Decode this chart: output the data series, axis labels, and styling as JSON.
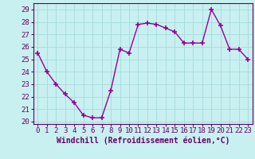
{
  "x": [
    0,
    1,
    2,
    3,
    4,
    5,
    6,
    7,
    8,
    9,
    10,
    11,
    12,
    13,
    14,
    15,
    16,
    17,
    18,
    19,
    20,
    21,
    22,
    23
  ],
  "y": [
    25.5,
    24.0,
    23.0,
    22.2,
    21.5,
    20.5,
    20.3,
    20.3,
    22.5,
    25.8,
    25.5,
    27.8,
    27.9,
    27.8,
    27.5,
    27.2,
    26.3,
    26.3,
    26.3,
    29.0,
    27.7,
    25.8,
    25.8,
    25.0
  ],
  "line_color": "#990099",
  "marker": "+",
  "marker_size": 4,
  "marker_lw": 1.2,
  "bg_color": "#c8f0f0",
  "grid_color": "#aadddd",
  "xlabel": "Windchill (Refroidissement éolien,°C)",
  "xlabel_fontsize": 7.0,
  "tick_fontsize": 6.5,
  "ylim": [
    19.8,
    29.5
  ],
  "xlim": [
    -0.5,
    23.5
  ],
  "yticks": [
    20,
    21,
    22,
    23,
    24,
    25,
    26,
    27,
    28,
    29
  ],
  "xticks": [
    0,
    1,
    2,
    3,
    4,
    5,
    6,
    7,
    8,
    9,
    10,
    11,
    12,
    13,
    14,
    15,
    16,
    17,
    18,
    19,
    20,
    21,
    22,
    23
  ],
  "spine_color": "#660066",
  "line_width": 1.0
}
